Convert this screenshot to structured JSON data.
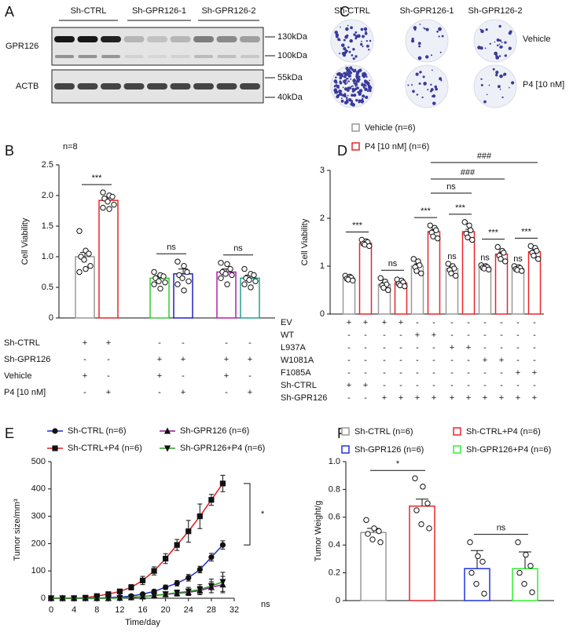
{
  "blot": {
    "label": "A",
    "groups": [
      "Sh-CTRL",
      "Sh-GPR126-1",
      "Sh-GPR126-2"
    ],
    "rows": [
      "GPR126",
      "ACTB"
    ],
    "markers": [
      "130kDa",
      "100kDa",
      "55kDa",
      "40kDa"
    ]
  },
  "colonies": {
    "label": "C",
    "columns": [
      "Sh-CTRL",
      "Sh-GPR126-1",
      "Sh-GPR126-2"
    ],
    "rows": [
      "Vehicle",
      "P4  [10 nM]"
    ]
  },
  "chart_data": [
    {
      "type": "bar",
      "label": "B",
      "note": "n=8",
      "ylabel": "Cell Viability",
      "ylim": [
        0,
        2.5
      ],
      "yticks": [
        0,
        0.5,
        {
          "value": 1,
          "label": "1.0"
        },
        1.5,
        {
          "value": 2,
          "label": "2.0"
        },
        2.5
      ],
      "values": [
        1.0,
        1.92,
        0.65,
        0.72,
        0.75,
        0.65
      ],
      "errors": [
        0.07,
        0.05,
        0.04,
        0.08,
        0.05,
        0.05
      ],
      "colors": [
        "#999999",
        "#e8262a",
        "#33cc33",
        "#2020c0",
        "#b020b0",
        "#20a090"
      ],
      "points": [
        [
          1.42,
          1.1,
          1.05,
          1.0,
          0.95,
          0.85,
          0.75,
          0.8
        ],
        [
          2.05,
          2.0,
          1.98,
          1.95,
          1.9,
          1.85,
          1.8,
          1.78
        ],
        [
          0.75,
          0.7,
          0.68,
          0.65,
          0.6,
          0.58,
          0.55,
          0.48
        ],
        [
          0.92,
          0.85,
          0.75,
          0.7,
          0.65,
          0.6,
          0.55,
          0.45
        ],
        [
          0.9,
          0.88,
          0.8,
          0.75,
          0.72,
          0.7,
          0.65,
          0.55
        ],
        [
          0.8,
          0.72,
          0.7,
          0.65,
          0.62,
          0.6,
          0.55,
          0.5
        ]
      ],
      "annotations": [
        "***",
        "ns",
        "ns"
      ],
      "conditions": [
        {
          "name": "Sh-CTRL",
          "marks": [
            "+",
            "+",
            "-",
            "-",
            "-",
            "-"
          ]
        },
        {
          "name": "Sh-GPR126",
          "marks": [
            "-",
            "-",
            "+",
            "+",
            "+",
            "+"
          ]
        },
        {
          "name": "Vehicle",
          "marks": [
            "+",
            "-",
            "+",
            "-",
            "+",
            "-"
          ]
        },
        {
          "name": "P4 [10 nM]",
          "marks": [
            "-",
            "+",
            "-",
            "+",
            "-",
            "+"
          ]
        }
      ]
    },
    {
      "type": "bar",
      "label": "D",
      "ylabel": "Cell Viability",
      "ylim": [
        0,
        3
      ],
      "yticks": [
        0,
        1,
        2,
        3
      ],
      "series": [
        {
          "name": "Vehicle (n=6)",
          "color": "#999999",
          "values": [
            0.75,
            0.62,
            1.0,
            0.95,
            0.98,
            0.95
          ],
          "errors": [
            0.02,
            0.04,
            0.05,
            0.04,
            0.02,
            0.02
          ],
          "points": [
            [
              0.8,
              0.78,
              0.76,
              0.74,
              0.72,
              0.7
            ],
            [
              0.75,
              0.68,
              0.62,
              0.6,
              0.55,
              0.5
            ],
            [
              1.15,
              1.1,
              1.02,
              0.98,
              0.9,
              0.85
            ],
            [
              1.05,
              1.0,
              0.95,
              0.92,
              0.85,
              0.8
            ],
            [
              1.02,
              1.0,
              0.98,
              0.97,
              0.95,
              0.93
            ],
            [
              1.0,
              0.98,
              0.96,
              0.94,
              0.92,
              0.9
            ]
          ]
        },
        {
          "name": "P4 [10 nM] (n=6)",
          "color": "#e8262a",
          "values": [
            1.48,
            0.65,
            1.72,
            1.72,
            1.25,
            1.3
          ],
          "errors": [
            0.02,
            0.02,
            0.04,
            0.05,
            0.04,
            0.04
          ],
          "points": [
            [
              1.55,
              1.52,
              1.5,
              1.47,
              1.45,
              1.42
            ],
            [
              0.72,
              0.7,
              0.66,
              0.63,
              0.6,
              0.58
            ],
            [
              1.85,
              1.8,
              1.75,
              1.7,
              1.62,
              1.58
            ],
            [
              1.92,
              1.85,
              1.75,
              1.68,
              1.6,
              1.55
            ],
            [
              1.4,
              1.32,
              1.28,
              1.22,
              1.15,
              1.1
            ],
            [
              1.42,
              1.38,
              1.32,
              1.28,
              1.22,
              1.15
            ]
          ]
        }
      ],
      "annotations": [
        "***",
        "ns",
        "***",
        "***",
        "***",
        "***",
        "ns",
        "ns",
        "ns",
        "ns",
        "###",
        "###"
      ],
      "conditions": [
        {
          "name": "EV",
          "marks": [
            "+",
            "+",
            "+",
            "+",
            "-",
            "-",
            "-",
            "-",
            "-",
            "-",
            "-",
            "-"
          ]
        },
        {
          "name": "WT",
          "marks": [
            "-",
            "-",
            "-",
            "-",
            "+",
            "+",
            "-",
            "-",
            "-",
            "-",
            "-",
            "-"
          ]
        },
        {
          "name": "L937A",
          "marks": [
            "-",
            "-",
            "-",
            "-",
            "-",
            "-",
            "+",
            "+",
            "-",
            "-",
            "-",
            "-"
          ]
        },
        {
          "name": "W1081A",
          "marks": [
            "-",
            "-",
            "-",
            "-",
            "-",
            "-",
            "-",
            "-",
            "+",
            "+",
            "-",
            "-"
          ]
        },
        {
          "name": "F1085A",
          "marks": [
            "-",
            "-",
            "-",
            "-",
            "-",
            "-",
            "-",
            "-",
            "-",
            "-",
            "+",
            "+"
          ]
        },
        {
          "name": "Sh-CTRL",
          "marks": [
            "+",
            "+",
            "-",
            "-",
            "-",
            "-",
            "-",
            "-",
            "-",
            "-",
            "-",
            "-"
          ]
        },
        {
          "name": "Sh-GPR126",
          "marks": [
            "-",
            "-",
            "+",
            "+",
            "+",
            "+",
            "+",
            "+",
            "+",
            "+",
            "+",
            "+"
          ]
        }
      ]
    },
    {
      "type": "line",
      "label": "E",
      "xlabel": "Time/day",
      "ylabel": "Tumor size/mm³",
      "xlim": [
        0,
        32
      ],
      "xticks": [
        0,
        4,
        8,
        12,
        16,
        20,
        24,
        28,
        32
      ],
      "ylim": [
        0,
        500
      ],
      "yticks": [
        0,
        100,
        200,
        300,
        400,
        500
      ],
      "x": [
        0,
        2,
        4,
        6,
        8,
        10,
        12,
        14,
        16,
        18,
        20,
        22,
        24,
        26,
        28,
        30
      ],
      "series": [
        {
          "name": "Sh-CTRL (n=6)",
          "color": "#1f2bbf",
          "marker": "circle",
          "values": [
            0,
            0,
            0,
            0,
            0,
            2,
            4,
            8,
            15,
            25,
            40,
            55,
            75,
            105,
            150,
            195
          ],
          "errors": [
            0,
            0,
            0,
            0,
            0,
            1,
            2,
            3,
            4,
            6,
            8,
            10,
            12,
            12,
            14,
            15
          ]
        },
        {
          "name": "Sh-GPR126 (n=6)",
          "color": "#8b1a8b",
          "marker": "triangle",
          "values": [
            0,
            0,
            0,
            0,
            0,
            0,
            1,
            3,
            6,
            10,
            14,
            18,
            22,
            28,
            40,
            50
          ],
          "errors": [
            0,
            0,
            0,
            0,
            0,
            0,
            1,
            2,
            3,
            5,
            8,
            10,
            12,
            15,
            20,
            30
          ]
        },
        {
          "name": "Sh-CTRL+P4 (n=6)",
          "color": "#e41a1c",
          "marker": "square",
          "values": [
            0,
            0,
            0,
            2,
            8,
            15,
            25,
            40,
            65,
            100,
            145,
            195,
            245,
            300,
            360,
            420
          ],
          "errors": [
            0,
            0,
            0,
            1,
            3,
            4,
            6,
            10,
            15,
            15,
            18,
            20,
            40,
            45,
            20,
            30
          ]
        },
        {
          "name": "Sh-GPR126+P4 (n=6)",
          "color": "#2ca02c",
          "marker": "triangle-down",
          "values": [
            0,
            0,
            0,
            0,
            0,
            0,
            1,
            3,
            6,
            10,
            15,
            20,
            25,
            32,
            45,
            60
          ],
          "errors": [
            0,
            0,
            0,
            0,
            0,
            0,
            1,
            2,
            4,
            6,
            8,
            10,
            15,
            18,
            25,
            35
          ]
        }
      ],
      "annotations": [
        "*",
        "ns"
      ]
    },
    {
      "type": "bar",
      "label": "F",
      "ylabel": "Tumor Weight/g",
      "ylim": [
        0,
        1
      ],
      "yticks": [
        0,
        0.2,
        0.4,
        0.6,
        0.8,
        {
          "value": 1,
          "label": "1.0"
        }
      ],
      "series": [
        {
          "name": "Sh-CTRL (n=6)",
          "color": "#999999",
          "values": [
            0.49
          ],
          "errors": [
            0.03
          ],
          "points": [
            [
              0.58,
              0.52,
              0.5,
              0.48,
              0.44,
              0.42
            ]
          ]
        },
        {
          "name": "Sh-CTRL+P4 (n=6)",
          "color": "#e8262a",
          "values": [
            0.68
          ],
          "errors": [
            0.05
          ],
          "points": [
            [
              0.88,
              0.82,
              0.7,
              0.65,
              0.55,
              0.52
            ]
          ]
        },
        {
          "name": "Sh-GPR126 (n=6)",
          "color": "#2233dd",
          "values": [
            0.23
          ],
          "errors": [
            0.13
          ],
          "points": [
            [
              0.42,
              0.32,
              0.28,
              0.2,
              0.12,
              0.05
            ]
          ]
        },
        {
          "name": "Sh-GPR126+P4 (n=6)",
          "color": "#33ee33",
          "values": [
            0.23
          ],
          "errors": [
            0.12
          ],
          "points": [
            [
              0.42,
              0.33,
              0.25,
              0.2,
              0.12,
              0.06
            ]
          ]
        }
      ],
      "annotations": [
        "*",
        "ns"
      ]
    }
  ]
}
